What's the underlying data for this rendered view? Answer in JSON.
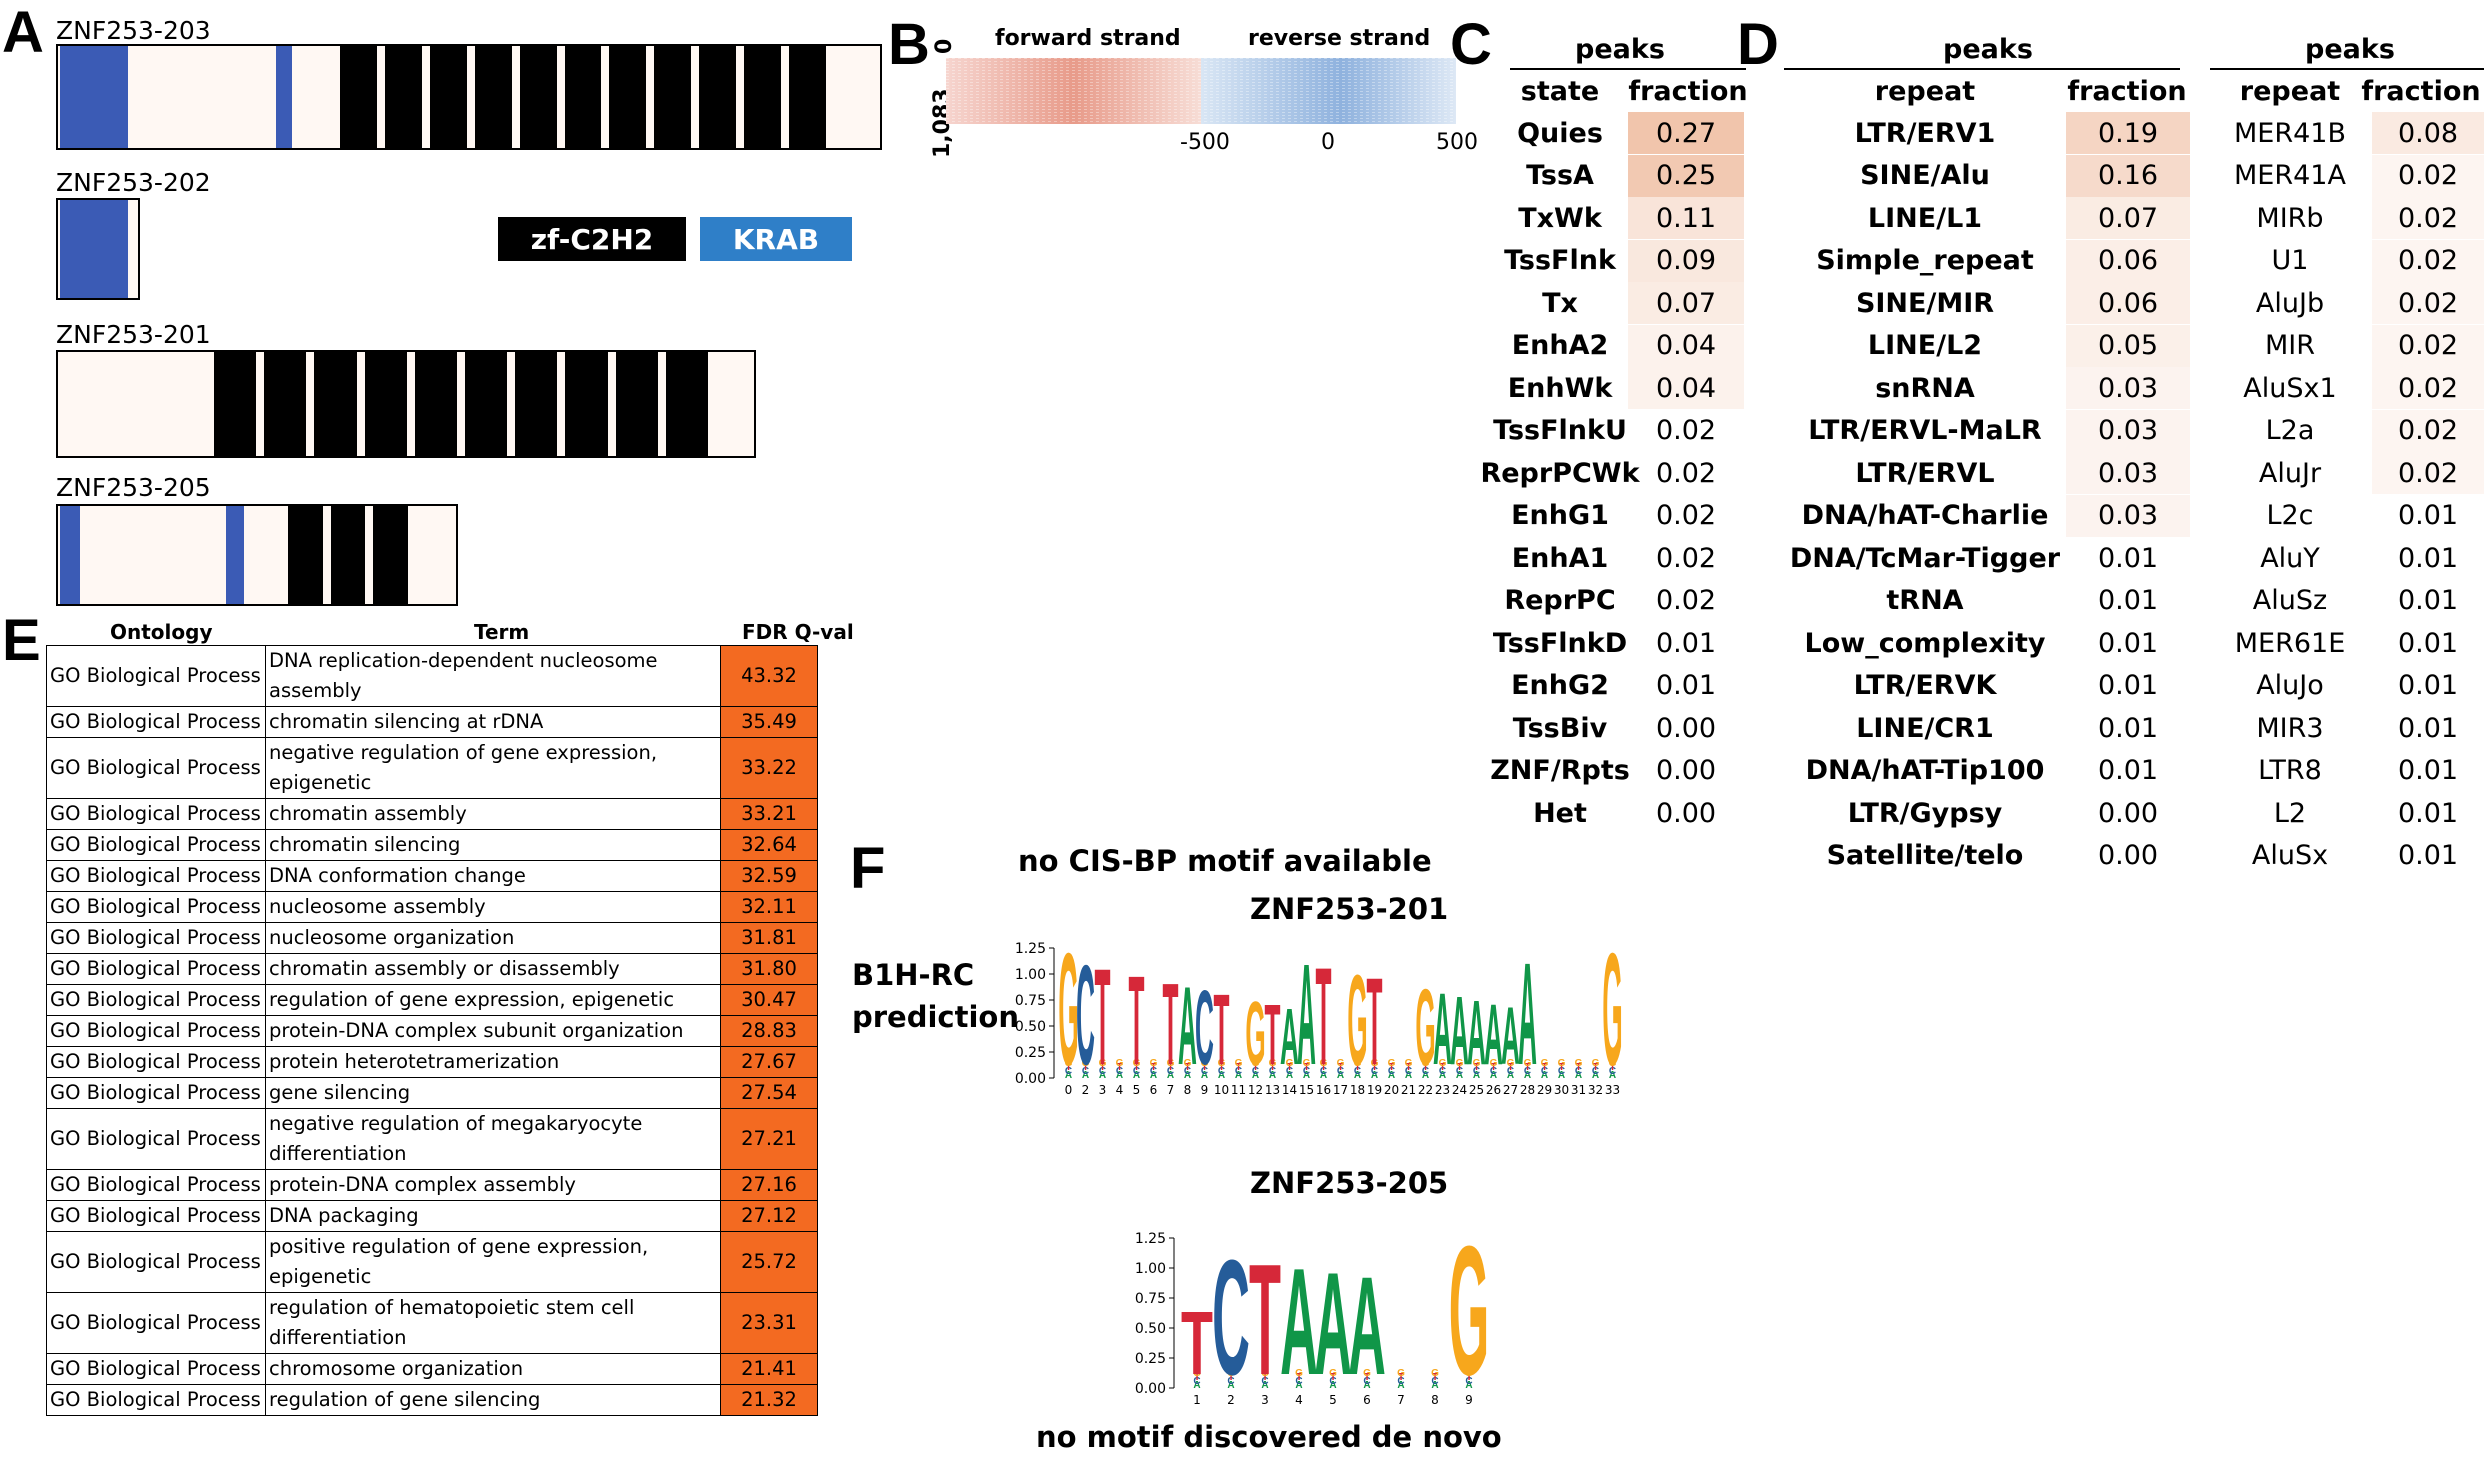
{
  "panels": {
    "a": "A",
    "b": "B",
    "c": "C",
    "d": "D",
    "e": "E",
    "f": "F"
  },
  "isoforms": [
    {
      "name": "ZNF253-203"
    },
    {
      "name": "ZNF253-202"
    },
    {
      "name": "ZNF253-201"
    },
    {
      "name": "ZNF253-205"
    }
  ],
  "legend": {
    "zf": "zf-C2H2",
    "krab": "KRAB",
    "zf_color": "#000000",
    "krab_color": "#3b5bb5"
  },
  "heatmap": {
    "forward": "forward strand",
    "reverse": "reverse strand",
    "y0": "0",
    "y1": "1,083",
    "ticks": [
      "-500",
      "0",
      "500"
    ],
    "forward_color": "#e07a5f",
    "reverse_color": "#5b8fd6"
  },
  "table_c": {
    "header": "peaks",
    "col1": "state",
    "col2": "fraction",
    "rows": [
      {
        "label": "Quies",
        "value": "0.27",
        "shade": 0.27
      },
      {
        "label": "TssA",
        "value": "0.25",
        "shade": 0.25
      },
      {
        "label": "TxWk",
        "value": "0.11",
        "shade": 0.11
      },
      {
        "label": "TssFlnk",
        "value": "0.09",
        "shade": 0.09
      },
      {
        "label": "Tx",
        "value": "0.07",
        "shade": 0.07
      },
      {
        "label": "EnhA2",
        "value": "0.04",
        "shade": 0.04
      },
      {
        "label": "EnhWk",
        "value": "0.04",
        "shade": 0.04
      },
      {
        "label": "TssFlnkU",
        "value": "0.02",
        "shade": 0
      },
      {
        "label": "ReprPCWk",
        "value": "0.02",
        "shade": 0
      },
      {
        "label": "EnhG1",
        "value": "0.02",
        "shade": 0
      },
      {
        "label": "EnhA1",
        "value": "0.02",
        "shade": 0
      },
      {
        "label": "ReprPC",
        "value": "0.02",
        "shade": 0
      },
      {
        "label": "TssFlnkD",
        "value": "0.01",
        "shade": 0
      },
      {
        "label": "EnhG2",
        "value": "0.01",
        "shade": 0
      },
      {
        "label": "TssBiv",
        "value": "0.00",
        "shade": 0
      },
      {
        "label": "ZNF/Rpts",
        "value": "0.00",
        "shade": 0
      },
      {
        "label": "Het",
        "value": "0.00",
        "shade": 0
      }
    ]
  },
  "table_d1": {
    "header": "peaks",
    "col1": "repeat",
    "col2": "fraction",
    "rows": [
      {
        "label": "LTR/ERV1",
        "value": "0.19",
        "shade": 0.19
      },
      {
        "label": "SINE/Alu",
        "value": "0.16",
        "shade": 0.16
      },
      {
        "label": "LINE/L1",
        "value": "0.07",
        "shade": 0.07
      },
      {
        "label": "Simple_repeat",
        "value": "0.06",
        "shade": 0.06
      },
      {
        "label": "SINE/MIR",
        "value": "0.06",
        "shade": 0.06
      },
      {
        "label": "LINE/L2",
        "value": "0.05",
        "shade": 0.05
      },
      {
        "label": "snRNA",
        "value": "0.03",
        "shade": 0.03
      },
      {
        "label": "LTR/ERVL-MaLR",
        "value": "0.03",
        "shade": 0.03
      },
      {
        "label": "LTR/ERVL",
        "value": "0.03",
        "shade": 0.03
      },
      {
        "label": "DNA/hAT-Charlie",
        "value": "0.03",
        "shade": 0.03
      },
      {
        "label": "DNA/TcMar-Tigger",
        "value": "0.01",
        "shade": 0
      },
      {
        "label": "tRNA",
        "value": "0.01",
        "shade": 0
      },
      {
        "label": "Low_complexity",
        "value": "0.01",
        "shade": 0
      },
      {
        "label": "LTR/ERVK",
        "value": "0.01",
        "shade": 0
      },
      {
        "label": "LINE/CR1",
        "value": "0.01",
        "shade": 0
      },
      {
        "label": "DNA/hAT-Tip100",
        "value": "0.01",
        "shade": 0
      },
      {
        "label": "LTR/Gypsy",
        "value": "0.00",
        "shade": 0
      },
      {
        "label": "Satellite/telo",
        "value": "0.00",
        "shade": 0
      }
    ]
  },
  "table_d2": {
    "header": "peaks",
    "col1": "repeat",
    "col2": "fraction",
    "rows": [
      {
        "label": "MER41B",
        "value": "0.08",
        "shade": 0.08
      },
      {
        "label": "MER41A",
        "value": "0.02",
        "shade": 0.02
      },
      {
        "label": "MIRb",
        "value": "0.02",
        "shade": 0.02
      },
      {
        "label": "U1",
        "value": "0.02",
        "shade": 0.02
      },
      {
        "label": "AluJb",
        "value": "0.02",
        "shade": 0.02
      },
      {
        "label": "MIR",
        "value": "0.02",
        "shade": 0.02
      },
      {
        "label": "AluSx1",
        "value": "0.02",
        "shade": 0.02
      },
      {
        "label": "L2a",
        "value": "0.02",
        "shade": 0.02
      },
      {
        "label": "AluJr",
        "value": "0.02",
        "shade": 0.02
      },
      {
        "label": "L2c",
        "value": "0.01",
        "shade": 0
      },
      {
        "label": "AluY",
        "value": "0.01",
        "shade": 0
      },
      {
        "label": "AluSz",
        "value": "0.01",
        "shade": 0
      },
      {
        "label": "MER61E",
        "value": "0.01",
        "shade": 0
      },
      {
        "label": "AluJo",
        "value": "0.01",
        "shade": 0
      },
      {
        "label": "MIR3",
        "value": "0.01",
        "shade": 0
      },
      {
        "label": "LTR8",
        "value": "0.01",
        "shade": 0
      },
      {
        "label": "L2",
        "value": "0.01",
        "shade": 0
      },
      {
        "label": "AluSx",
        "value": "0.01",
        "shade": 0
      }
    ]
  },
  "go_table": {
    "headers": [
      "Ontology",
      "Term",
      "FDR Q-val"
    ],
    "rows": [
      [
        "GO Biological Process",
        "DNA replication-dependent nucleosome assembly",
        "43.32"
      ],
      [
        "GO Biological Process",
        "chromatin silencing at rDNA",
        "35.49"
      ],
      [
        "GO Biological Process",
        "negative regulation of gene expression, epigenetic",
        "33.22"
      ],
      [
        "GO Biological Process",
        "chromatin assembly",
        "33.21"
      ],
      [
        "GO Biological Process",
        "chromatin silencing",
        "32.64"
      ],
      [
        "GO Biological Process",
        "DNA conformation change",
        "32.59"
      ],
      [
        "GO Biological Process",
        "nucleosome assembly",
        "32.11"
      ],
      [
        "GO Biological Process",
        "nucleosome organization",
        "31.81"
      ],
      [
        "GO Biological Process",
        "chromatin assembly or disassembly",
        "31.80"
      ],
      [
        "GO Biological Process",
        "regulation of gene expression, epigenetic",
        "30.47"
      ],
      [
        "GO Biological Process",
        "protein-DNA complex subunit organization",
        "28.83"
      ],
      [
        "GO Biological Process",
        "protein heterotetramerization",
        "27.67"
      ],
      [
        "GO Biological Process",
        "gene silencing",
        "27.54"
      ],
      [
        "GO Biological Process",
        "negative regulation of megakaryocyte differentiation",
        "27.21"
      ],
      [
        "GO Biological Process",
        "protein-DNA complex assembly",
        "27.16"
      ],
      [
        "GO Biological Process",
        "DNA packaging",
        "27.12"
      ],
      [
        "GO Biological Process",
        "positive regulation of gene expression, epigenetic",
        "25.72"
      ],
      [
        "GO Biological Process",
        "regulation of hematopoietic stem cell differentiation",
        "23.31"
      ],
      [
        "GO Biological Process",
        "chromosome organization",
        "21.41"
      ],
      [
        "GO Biological Process",
        "regulation of gene silencing",
        "21.32"
      ]
    ]
  },
  "motifs": {
    "no_cisbp": "no CIS-BP motif available",
    "b1h_line1": "B1H-RC",
    "b1h_line2": "prediction",
    "znf201": "ZNF253-201",
    "znf205": "ZNF253-205",
    "no_denovo": "no motif discovered de novo",
    "yticks": [
      "1.25",
      "1.00",
      "0.75",
      "0.50",
      "0.25",
      "0.00"
    ],
    "x201": [
      "0",
      "2",
      "3",
      "4",
      "5",
      "6",
      "7",
      "8",
      "9",
      "10",
      "11",
      "12",
      "13",
      "14",
      "15",
      "16",
      "17",
      "18",
      "19",
      "20",
      "21",
      "22",
      "23",
      "24",
      "25",
      "26",
      "27",
      "28",
      "29",
      "30",
      "31",
      "32",
      "33"
    ],
    "x205": [
      "1",
      "2",
      "3",
      "4",
      "5",
      "6",
      "7",
      "8",
      "9"
    ],
    "logo201": [
      "G",
      "C",
      "T",
      "",
      "T",
      "",
      "T",
      "A",
      "C",
      "T",
      "",
      "G",
      "T",
      "A",
      "A",
      "T",
      "",
      "G",
      "T",
      "",
      "",
      "G",
      "A",
      "A",
      "A",
      "A",
      "A",
      "A",
      "",
      "",
      "",
      "",
      "G"
    ],
    "logo205": [
      "T",
      "C",
      "T",
      "A",
      "A",
      "A",
      "",
      "",
      "G"
    ]
  }
}
